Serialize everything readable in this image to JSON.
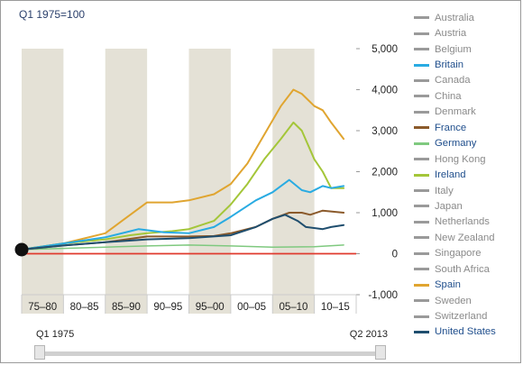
{
  "title": "Q1 1975=100",
  "slider": {
    "start_label": "Q1 1975",
    "end_label": "Q2 2013"
  },
  "colors": {
    "band": "#e4e1d6",
    "zero_line": "#e03a2e",
    "axis_text": "#222222",
    "grey_series": "#8c8c8c"
  },
  "legend": [
    {
      "name": "Australia",
      "color": "#9a9a9a",
      "text_color": "#8a8a8a"
    },
    {
      "name": "Austria",
      "color": "#9a9a9a",
      "text_color": "#8a8a8a"
    },
    {
      "name": "Belgium",
      "color": "#9a9a9a",
      "text_color": "#8a8a8a"
    },
    {
      "name": "Britain",
      "color": "#29abe2",
      "text_color": "#1f4e8c"
    },
    {
      "name": "Canada",
      "color": "#9a9a9a",
      "text_color": "#8a8a8a"
    },
    {
      "name": "China",
      "color": "#9a9a9a",
      "text_color": "#8a8a8a"
    },
    {
      "name": "Denmark",
      "color": "#9a9a9a",
      "text_color": "#8a8a8a"
    },
    {
      "name": "France",
      "color": "#8b5a2b",
      "text_color": "#1f4e8c"
    },
    {
      "name": "Germany",
      "color": "#7fc97f",
      "text_color": "#1f4e8c"
    },
    {
      "name": "Hong Kong",
      "color": "#9a9a9a",
      "text_color": "#8a8a8a"
    },
    {
      "name": "Ireland",
      "color": "#a4c639",
      "text_color": "#1f4e8c"
    },
    {
      "name": "Italy",
      "color": "#9a9a9a",
      "text_color": "#8a8a8a"
    },
    {
      "name": "Japan",
      "color": "#9a9a9a",
      "text_color": "#8a8a8a"
    },
    {
      "name": "Netherlands",
      "color": "#9a9a9a",
      "text_color": "#8a8a8a"
    },
    {
      "name": "New Zealand",
      "color": "#9a9a9a",
      "text_color": "#8a8a8a"
    },
    {
      "name": "Singapore",
      "color": "#9a9a9a",
      "text_color": "#8a8a8a"
    },
    {
      "name": "South Africa",
      "color": "#9a9a9a",
      "text_color": "#8a8a8a"
    },
    {
      "name": "Spain",
      "color": "#e0a530",
      "text_color": "#1f4e8c"
    },
    {
      "name": "Sweden",
      "color": "#9a9a9a",
      "text_color": "#8a8a8a"
    },
    {
      "name": "Switzerland",
      "color": "#9a9a9a",
      "text_color": "#8a8a8a"
    },
    {
      "name": "United States",
      "color": "#1f4e6e",
      "text_color": "#1f4e8c"
    }
  ],
  "chart_data": {
    "type": "line",
    "title": "Q1 1975=100",
    "xlim": [
      1975,
      2015
    ],
    "ylim": [
      -1000,
      5000
    ],
    "yticks": [
      5000,
      4000,
      3000,
      2000,
      1000,
      0,
      -1000
    ],
    "ytick_labels": [
      "5,000",
      "4,000",
      "3,000",
      "2,000",
      "1,000",
      "0",
      "-1,000"
    ],
    "period_labels": [
      "75–80",
      "80–85",
      "85–90",
      "90–95",
      "95–00",
      "00–05",
      "05–10",
      "10–15"
    ],
    "shaded_periods": [
      [
        1975,
        1980
      ],
      [
        1985,
        1990
      ],
      [
        1995,
        2000
      ],
      [
        2005,
        2010
      ]
    ],
    "start_marker": {
      "x": 1975,
      "y": 100
    },
    "zero_line_value": 0,
    "series": [
      {
        "name": "Spain",
        "color": "#e0a530",
        "width": 2,
        "x": [
          1975,
          1980,
          1985,
          1987,
          1990,
          1993,
          1995,
          1998,
          2000,
          2002,
          2004,
          2006,
          2007.5,
          2008.5,
          2010,
          2011,
          2012,
          2013.5
        ],
        "y": [
          100,
          250,
          500,
          800,
          1250,
          1250,
          1300,
          1450,
          1700,
          2200,
          2900,
          3600,
          4000,
          3900,
          3600,
          3500,
          3200,
          2800
        ]
      },
      {
        "name": "Ireland",
        "color": "#a4c639",
        "width": 2,
        "x": [
          1975,
          1980,
          1985,
          1988,
          1990,
          1993,
          1995,
          1998,
          2000,
          2002,
          2004,
          2006,
          2007.5,
          2008.5,
          2010,
          2011,
          2012,
          2013.5
        ],
        "y": [
          100,
          250,
          350,
          450,
          500,
          550,
          600,
          800,
          1200,
          1700,
          2300,
          2800,
          3200,
          3000,
          2300,
          2000,
          1600,
          1600
        ]
      },
      {
        "name": "Germany",
        "color": "#7fc97f",
        "width": 1.5,
        "x": [
          1975,
          1980,
          1985,
          1990,
          1995,
          2000,
          2005,
          2010,
          2013.5
        ],
        "y": [
          100,
          130,
          160,
          190,
          210,
          190,
          160,
          170,
          210
        ]
      },
      {
        "name": "Britain",
        "color": "#29abe2",
        "width": 2,
        "x": [
          1975,
          1980,
          1985,
          1988,
          1989,
          1992,
          1995,
          1998,
          2000,
          2003,
          2005,
          2007,
          2008.5,
          2009.5,
          2011,
          2012,
          2013.5
        ],
        "y": [
          100,
          250,
          400,
          550,
          600,
          520,
          500,
          650,
          900,
          1300,
          1500,
          1800,
          1550,
          1500,
          1650,
          1600,
          1650
        ]
      },
      {
        "name": "France",
        "color": "#8b5a2b",
        "width": 2,
        "x": [
          1975,
          1980,
          1985,
          1990,
          1993,
          1995,
          1998,
          2000,
          2003,
          2005,
          2007,
          2008.5,
          2009.5,
          2011,
          2013.5
        ],
        "y": [
          100,
          200,
          280,
          420,
          420,
          420,
          430,
          500,
          650,
          850,
          1000,
          1000,
          950,
          1050,
          1000
        ]
      },
      {
        "name": "United States",
        "color": "#1f4e6e",
        "width": 2,
        "x": [
          1975,
          1980,
          1985,
          1990,
          1995,
          2000,
          2003,
          2005,
          2006.5,
          2008,
          2009,
          2011,
          2012,
          2013.5
        ],
        "y": [
          100,
          200,
          280,
          350,
          380,
          450,
          650,
          850,
          950,
          800,
          650,
          600,
          650,
          700
        ]
      }
    ]
  }
}
